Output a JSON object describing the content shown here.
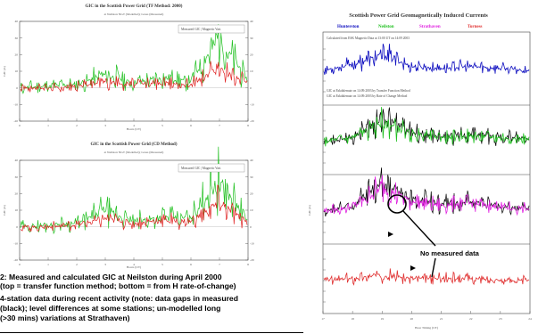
{
  "colors": {
    "measured": "#20c020",
    "calculated": "#e02020",
    "black": "#000000",
    "blue": "#1010c0",
    "magenta": "#e020e0",
    "red": "#e03030"
  },
  "left_top": {
    "title": "GIC in the Scottish Power Grid (TF Method: 2000)",
    "subtitle": "at Neilston NGT (Modelled); Grass (Measured)",
    "legend": "Measured GIC | Magnetic Vari.",
    "xlabel": "Hours (UT)",
    "ylabel": "GIC (A)"
  },
  "left_bottom": {
    "title": "GIC in the Scottish Power Grid (CD Method)",
    "subtitle": "at Neilston NGT (Modelled); Grass (Measured)",
    "legend": "Measured GIC | Magnetic Vari.",
    "xlabel": "Hours (UT)",
    "ylabel": "GIC (A)"
  },
  "right": {
    "title": "Scottish Power Grid Geomagnetically Induced Currents",
    "legend": [
      {
        "label": "Hunterston",
        "color": "#1010c0"
      },
      {
        "label": "Neilston",
        "color": "#20c020"
      },
      {
        "label": "Strathaven",
        "color": "#e020e0"
      },
      {
        "label": "Torness",
        "color": "#e03030"
      }
    ],
    "note1": "Calculated from ESK Magnetic Data at 13:00 UT on 14:09 2003",
    "note2a": "GIC at Eskdalemuir on 14:09:2003 by Transfer Function Method",
    "note2b": "GIC at Eskdalemuir on 14:09:2003 by Rate of Change Method",
    "ylabel": "GIC (A)",
    "xlabel": "Hour Timing (UT)",
    "annotation": "No measured data"
  },
  "caption": {
    "line1": "2: Measured and calculated GIC at Neilston during April 2000",
    "line2": "(top = transfer function method; bottom = from  H rate-of-change)",
    "line3": "4-station data during recent activity (note: data gaps in measured",
    "line4": "(black); level differences at some stations; un-modelled long",
    "line5": "(>30 mins) variations at Strathaven)"
  },
  "chart_data": [
    {
      "type": "line",
      "title": "GIC in the Scottish Power Grid (TF Method: 2000)",
      "xlabel": "Hours (UT)",
      "ylabel": "GIC (A)",
      "x": [
        0,
        1,
        2,
        3,
        4,
        5,
        6,
        7,
        8
      ],
      "xlim": [
        0,
        8
      ],
      "ylim": [
        -20,
        40
      ],
      "yticks": [
        -20,
        -10,
        0,
        10,
        20,
        30,
        40
      ],
      "series": [
        {
          "name": "Measured",
          "color": "#20c020",
          "values": [
            0,
            1,
            2,
            8,
            3,
            6,
            4,
            30,
            5
          ]
        },
        {
          "name": "Calculated",
          "color": "#e02020",
          "values": [
            0,
            0,
            1,
            4,
            2,
            3,
            2,
            12,
            3
          ]
        }
      ]
    },
    {
      "type": "line",
      "title": "GIC in the Scottish Power Grid (CD Method)",
      "xlabel": "Hours (UT)",
      "ylabel": "GIC (A)",
      "x": [
        0,
        1,
        2,
        3,
        4,
        5,
        6,
        7,
        8
      ],
      "xlim": [
        0,
        8
      ],
      "ylim": [
        -20,
        40
      ],
      "yticks": [
        -20,
        -10,
        0,
        10,
        20,
        30,
        40
      ],
      "series": [
        {
          "name": "Measured",
          "color": "#20c020",
          "values": [
            0,
            1,
            2,
            10,
            3,
            6,
            5,
            28,
            4
          ]
        },
        {
          "name": "Calculated",
          "color": "#e02020",
          "values": [
            0,
            0,
            1,
            5,
            2,
            4,
            3,
            14,
            3
          ]
        }
      ]
    },
    {
      "type": "line",
      "title": "Scottish Power Grid Geomagnetically Induced Currents",
      "xlabel": "Hour Timing (UT)",
      "ylabel": "GIC (A)",
      "x": [
        17,
        18,
        19,
        20,
        21,
        22,
        23,
        24
      ],
      "xlim": [
        17,
        24
      ],
      "series": [
        {
          "name": "Hunterston",
          "color": "#1010c0",
          "values": [
            0,
            3,
            8,
            2,
            1,
            2,
            1,
            0
          ]
        },
        {
          "name": "Neilston",
          "color": "#20c020",
          "values": [
            0,
            2,
            10,
            4,
            2,
            3,
            2,
            1
          ]
        },
        {
          "name": "Strathaven",
          "color": "#e020e0",
          "values": [
            0,
            2,
            12,
            5,
            3,
            4,
            2,
            1
          ]
        },
        {
          "name": "Torness",
          "color": "#e03030",
          "values": [
            0,
            1,
            3,
            1,
            1,
            1,
            0,
            0
          ]
        }
      ]
    }
  ]
}
